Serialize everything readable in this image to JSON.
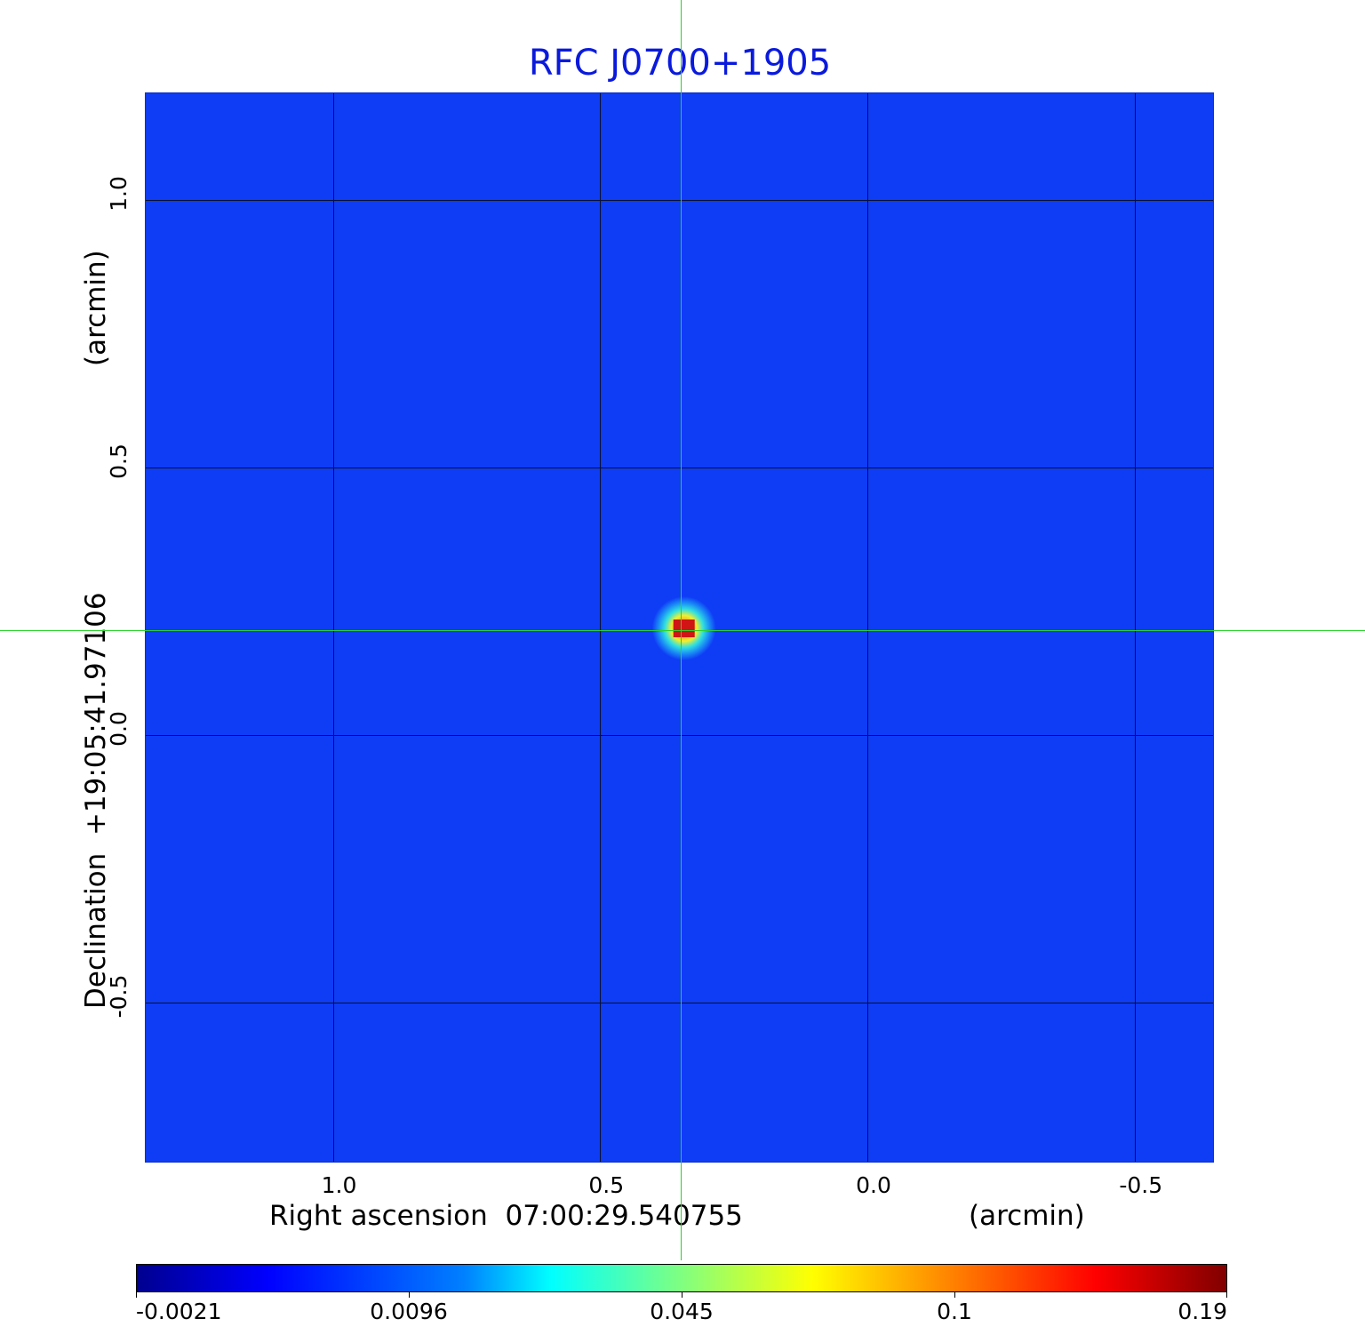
{
  "chart_data": {
    "type": "heatmap",
    "title": "RFC J0700+1905",
    "xlabel": "Right ascension  07:00:29.540755",
    "xunit": "(arcmin)",
    "ylabel": "Declination  +19:05:41.97106",
    "yunit": "(arcmin)",
    "x_ticks": [
      "1.0",
      "0.5",
      "0.0",
      "-0.5"
    ],
    "x_tick_values": [
      1.0,
      0.5,
      0.0,
      -0.5
    ],
    "y_ticks": [
      "1.0",
      "0.5",
      "0.0",
      "-0.5"
    ],
    "y_tick_values": [
      1.0,
      0.5,
      0.0,
      -0.5
    ],
    "xlim": [
      1.35,
      -0.65
    ],
    "ylim": [
      -0.8,
      1.2
    ],
    "x_reversed": true,
    "grid": true,
    "crosshair": {
      "x": 0.343,
      "y": 0.2
    },
    "source": {
      "x": 0.343,
      "y": 0.2,
      "peak": 0.19
    },
    "colorbar": {
      "colormap": "jet",
      "tick_labels": [
        "-0.0021",
        "0.0096",
        "0.045",
        "0.1",
        "0.19"
      ],
      "position": "bottom"
    },
    "colors": {
      "title": "#0a1adc",
      "background_map": "#0f3cf5",
      "grid": "#0a1030",
      "crosshair": "#2bd32b"
    }
  }
}
